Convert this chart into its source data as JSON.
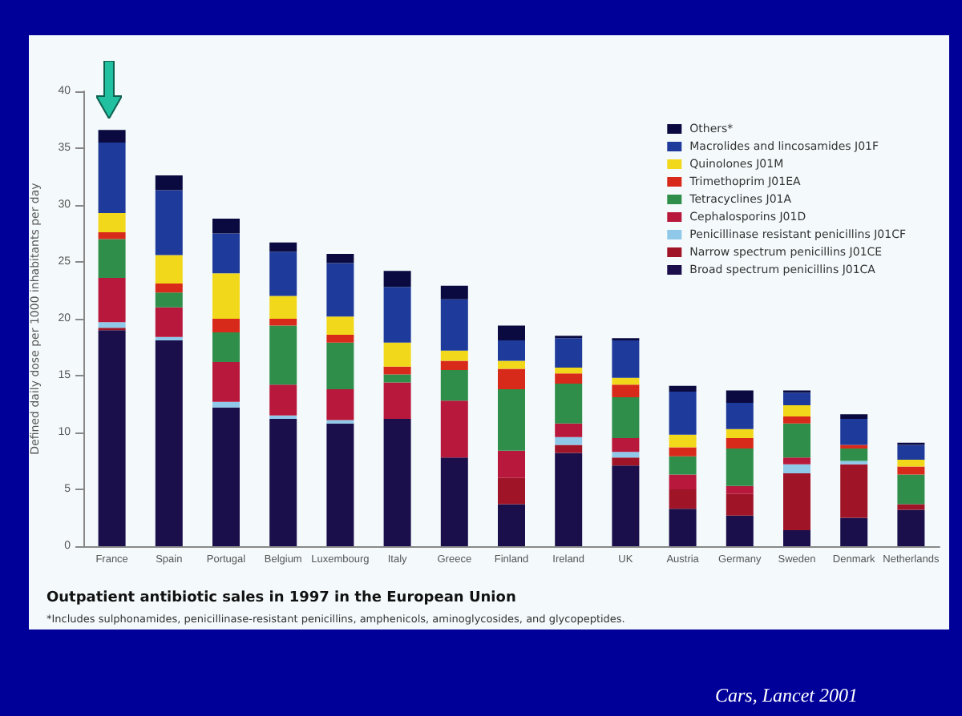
{
  "chart_data": {
    "type": "bar",
    "stacked": true,
    "title": "Outpatient antibiotic sales in 1997 in the European Union",
    "ylabel": "Defined daily dose per 1000 inhabitants per day",
    "annotations": [
      "*Includes sulphonamides, penicillinase-resistant penicillins, amphenicols, aminoglycosides, and glycopeptides.",
      "Cars, Lancet 2001"
    ],
    "categories": [
      "France",
      "Spain",
      "Portugal",
      "Belgium",
      "Luxembourg",
      "Italy",
      "Greece",
      "Finland",
      "Ireland",
      "UK",
      "Austria",
      "Germany",
      "Sweden",
      "Denmark",
      "Netherlands"
    ],
    "ylim": [
      0,
      40
    ],
    "yticks": [
      0,
      5,
      10,
      15,
      20,
      25,
      30,
      35,
      40
    ],
    "grid": false,
    "legend": "top right",
    "series": [
      {
        "name": "Broad spectrum penicillins J01CA",
        "color": "#1a0f4a",
        "values": [
          19.0,
          18.1,
          12.2,
          11.2,
          10.8,
          11.2,
          7.8,
          3.7,
          8.2,
          7.1,
          3.3,
          2.7,
          1.4,
          2.5,
          3.2
        ]
      },
      {
        "name": "Narrow spectrum penicillins J01CE",
        "color": "#a01428",
        "values": [
          0.2,
          0,
          0,
          0,
          0,
          0,
          0,
          2.3,
          0.7,
          0.7,
          1.7,
          1.9,
          5.0,
          4.7,
          0.5
        ]
      },
      {
        "name": "Penicillinase resistant penicillins J01CF",
        "color": "#8fc8e8",
        "values": [
          0.5,
          0.3,
          0.5,
          0.3,
          0.3,
          0,
          0,
          0,
          0.7,
          0.5,
          0,
          0,
          0.8,
          0.3,
          0
        ]
      },
      {
        "name": "Cephalosporins J01D",
        "color": "#b8183c",
        "values": [
          3.9,
          2.6,
          3.5,
          2.7,
          2.7,
          3.2,
          5.0,
          2.4,
          1.2,
          1.2,
          1.3,
          0.7,
          0.6,
          0,
          0
        ]
      },
      {
        "name": "Tetracyclines J01A",
        "color": "#2f8f4a",
        "values": [
          3.4,
          1.3,
          2.6,
          5.2,
          4.1,
          0.7,
          2.7,
          5.4,
          3.5,
          3.6,
          1.6,
          3.3,
          3.0,
          1.1,
          2.6
        ]
      },
      {
        "name": "Trimethoprim J01EA",
        "color": "#d82a1a",
        "values": [
          0.6,
          0.8,
          1.2,
          0.6,
          0.7,
          0.7,
          0.8,
          1.8,
          0.9,
          1.1,
          0.8,
          0.9,
          0.6,
          0.3,
          0.7
        ]
      },
      {
        "name": "Quinolones J01M",
        "color": "#f2d81a",
        "values": [
          1.7,
          2.5,
          4.0,
          2.0,
          1.6,
          2.1,
          0.9,
          0.7,
          0.5,
          0.6,
          1.1,
          0.8,
          1.0,
          0,
          0.6
        ]
      },
      {
        "name": "Macrolides and lincosamides J01F",
        "color": "#1e3a9a",
        "values": [
          6.2,
          5.7,
          3.5,
          3.9,
          4.7,
          4.9,
          4.5,
          1.8,
          2.6,
          3.3,
          3.8,
          2.3,
          1.1,
          2.3,
          1.3
        ]
      },
      {
        "name": "Others*",
        "color": "#0a0a40",
        "values": [
          1.1,
          1.3,
          1.3,
          0.8,
          0.8,
          1.4,
          1.2,
          1.3,
          0.2,
          0.2,
          0.5,
          1.1,
          0.2,
          0.4,
          0.2
        ]
      }
    ]
  }
}
